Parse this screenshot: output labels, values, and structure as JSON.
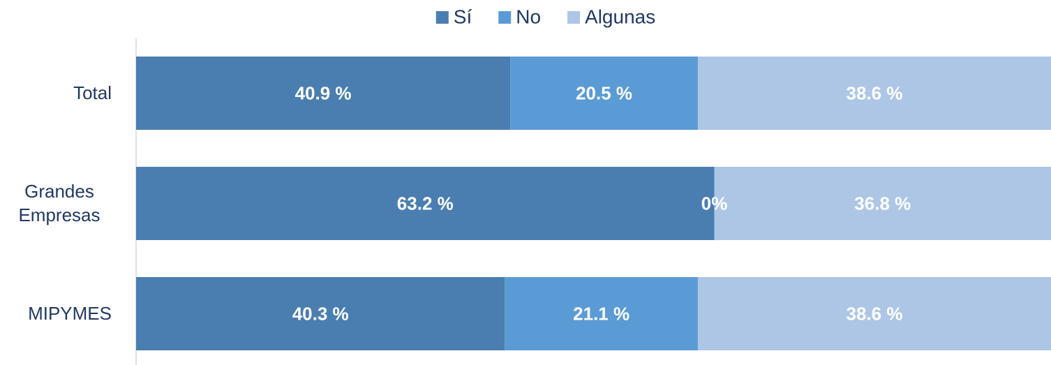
{
  "chart_data": {
    "type": "stacked-bar-horizontal",
    "categories": [
      "Total",
      "Grandes Empresas",
      "MIPYMES"
    ],
    "xlim": [
      0,
      100
    ],
    "legend": "top",
    "series": [
      {
        "name": "Sí",
        "color": "#4a7eb0",
        "values": [
          40.9,
          63.2,
          40.3
        ],
        "value_labels": [
          "40.9 %",
          "63.2 %",
          "40.3 %"
        ]
      },
      {
        "name": "No",
        "color": "#5b9bd5",
        "values": [
          20.5,
          0,
          21.1
        ],
        "value_labels": [
          "20.5 %",
          "0%",
          "21.1 %"
        ]
      },
      {
        "name": "Algunas",
        "color": "#adc6e6",
        "values": [
          38.6,
          36.8,
          38.6
        ],
        "value_labels": [
          "38.6 %",
          "36.8 %",
          "38.6 %"
        ]
      }
    ]
  }
}
